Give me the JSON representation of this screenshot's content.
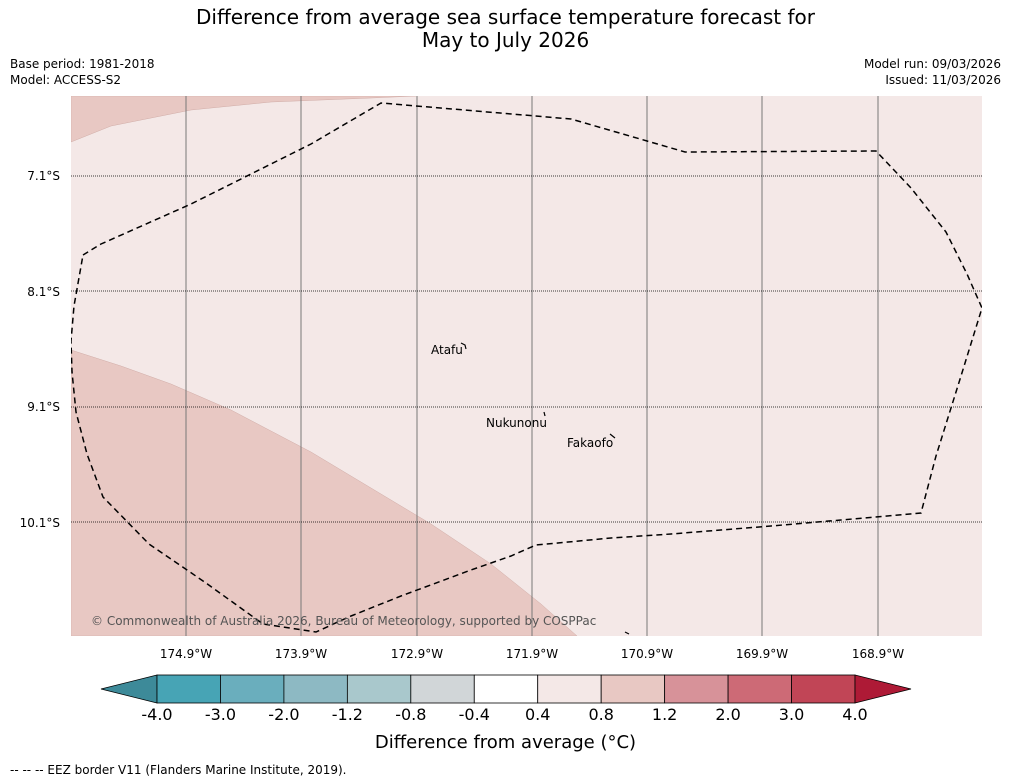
{
  "header": {
    "title_line1": "Difference from average sea surface temperature forecast for",
    "title_line2": "May to July 2026",
    "base_period": "Base period: 1981-2018",
    "model": "Model: ACCESS-S2",
    "model_run": "Model run: 09/03/2026",
    "issued": "Issued: 11/03/2026"
  },
  "map": {
    "latitudes": [
      "7.1°S",
      "8.1°S",
      "9.1°S",
      "10.1°S"
    ],
    "longitudes": [
      "174.9°W",
      "173.9°W",
      "172.9°W",
      "171.9°W",
      "170.9°W",
      "169.9°W",
      "168.9°W"
    ],
    "places": [
      "Atafu",
      "Nukunonu",
      "Fakaofo"
    ],
    "copyright": "© Commonwealth of Australia 2026, Bureau of Meteorology, supported by COSPPac",
    "colors": {
      "background_band": "#f4e8e7",
      "warm_band": "#e8c8c3",
      "eez_line": "#000000"
    }
  },
  "colorbar": {
    "ticks": [
      "-4.0",
      "-3.0",
      "-2.0",
      "-1.2",
      "-0.8",
      "-0.4",
      "0.4",
      "0.8",
      "1.2",
      "2.0",
      "3.0",
      "4.0"
    ],
    "colors": [
      "#3d8a99",
      "#47a4b5",
      "#6aaebd",
      "#8db9c3",
      "#a9c8cc",
      "#d1d6d8",
      "#ffffff",
      "#f4e8e7",
      "#e8c8c3",
      "#d79299",
      "#cd6a76",
      "#c14556",
      "#ae1a36"
    ],
    "label": "Difference from average (°C)"
  },
  "footer": {
    "legend": "--  --  -- EEZ border V11 (Flanders Marine Institute, 2019)."
  }
}
